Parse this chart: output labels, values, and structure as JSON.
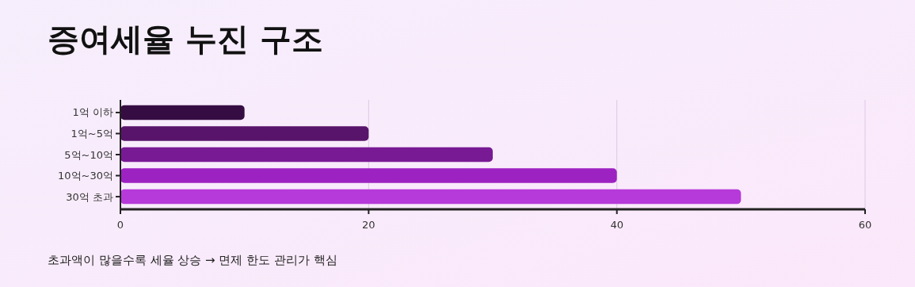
{
  "chart_data": {
    "type": "bar",
    "title": "증여세율 누진 구조",
    "orientation": "horizontal",
    "categories": [
      "1억 이하",
      "1억~5억",
      "5억~10억",
      "10억~30억",
      "30억 초과"
    ],
    "values": [
      10,
      20,
      30,
      40,
      50
    ],
    "colors": [
      "#360d42",
      "#58146a",
      "#781a94",
      "#9d22c2",
      "#b63ad9"
    ],
    "xlim": [
      0,
      60
    ],
    "xticks": [
      0,
      20,
      40,
      60
    ],
    "grid": "x",
    "annotations": [
      "초과액이 많을수록 세율 상승 → 면제 한도 관리가 핵심"
    ]
  }
}
